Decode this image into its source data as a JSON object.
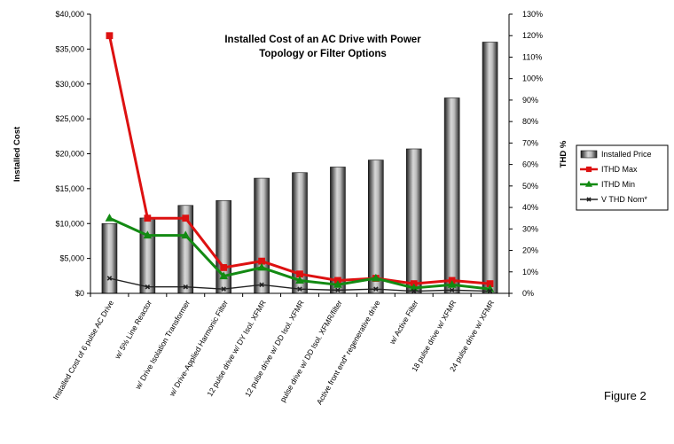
{
  "chart_data": {
    "type": "bar",
    "title_lines": [
      "Installed Cost of an AC Drive with Power",
      "Topology or Filter Options"
    ],
    "ylabel": "Installed Cost",
    "y2label": "THD %",
    "ylim": [
      0,
      40000
    ],
    "y2lim": [
      0,
      130
    ],
    "yticks": [
      "$0",
      "$5,000",
      "$10,000",
      "$15,000",
      "$20,000",
      "$25,000",
      "$30,000",
      "$35,000",
      "$40,000"
    ],
    "y2ticks": [
      "0%",
      "10%",
      "20%",
      "30%",
      "40%",
      "50%",
      "60%",
      "70%",
      "80%",
      "90%",
      "100%",
      "110%",
      "120%",
      "130%"
    ],
    "categories": [
      "Installed Cost of 6 pulse AC Drive",
      "w/ 5% Line Reactor",
      "w/ Drive Isolation Transformer",
      "w/ Drive-Applied Harmonic Filter",
      "12 pulse drive w/ DY Isol. XFMR",
      "12 pulse drive w/ DD Isol. XFMR",
      "pulse drive w/ DD Isol. XFMR/filter",
      "Active front end* regenerative drive",
      "w/ Active Filter",
      "18 pulse drive w/ XFMR",
      "24 pulse drive w/ XFMR"
    ],
    "series": [
      {
        "name": "Installed Price",
        "kind": "bar",
        "axis": "left",
        "color": "#555555",
        "values": [
          10000,
          10800,
          12600,
          13300,
          16500,
          17300,
          18100,
          19100,
          20700,
          28000,
          36000
        ]
      },
      {
        "name": "ITHD Max",
        "kind": "line",
        "axis": "right",
        "color": "#dd1111",
        "marker": "square",
        "values": [
          120,
          35,
          35,
          12,
          15,
          9,
          6,
          7,
          4.5,
          6,
          4.5
        ]
      },
      {
        "name": "ITHD Min",
        "kind": "line",
        "axis": "right",
        "color": "#138a13",
        "marker": "triangle",
        "values": [
          35,
          27,
          27,
          8,
          12,
          6,
          4,
          7,
          2.5,
          4,
          2
        ]
      },
      {
        "name": "V THD Nom*",
        "kind": "line",
        "axis": "right",
        "color": "#222222",
        "marker": "x",
        "values": [
          7,
          3,
          3,
          2,
          4,
          2,
          1.5,
          2,
          1,
          1.5,
          1
        ]
      }
    ],
    "legend_position": "right",
    "grid": false
  },
  "figure_label": "Figure 2"
}
